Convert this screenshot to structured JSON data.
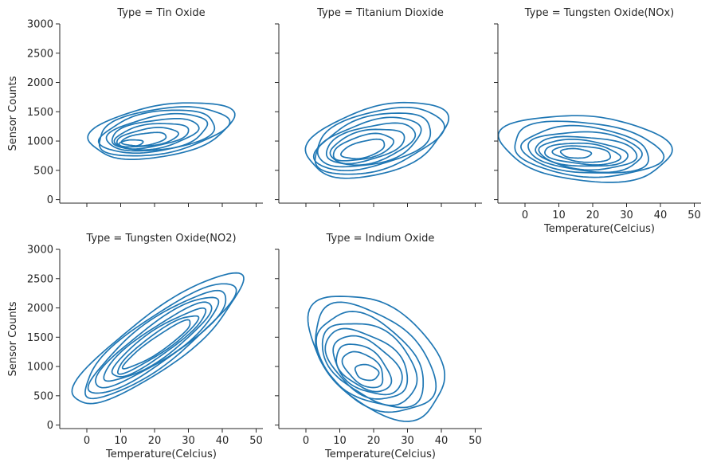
{
  "figure": {
    "line_color": "#1f77b4",
    "facet_column": "Type"
  },
  "chart_data": [
    {
      "type": "kde-contour",
      "title": "Type = Tin Oxide",
      "xlabel": "",
      "ylabel": "Sensor Counts",
      "xlim": [
        -8,
        52
      ],
      "ylim": [
        -60,
        3000
      ],
      "xticks": [
        0,
        10,
        20,
        30,
        40,
        50
      ],
      "yticks": [
        0,
        500,
        1000,
        1500,
        2000,
        2500,
        3000
      ],
      "show_xtick_labels": false,
      "show_ytick_labels": true,
      "grid": false,
      "contours": [
        {
          "cx": 22,
          "cy": 1180,
          "rx": 21,
          "ry": 450,
          "tilt": 0.32
        },
        {
          "cx": 22,
          "cy": 1170,
          "rx": 19,
          "ry": 390,
          "tilt": 0.32
        },
        {
          "cx": 21,
          "cy": 1160,
          "rx": 17,
          "ry": 340,
          "tilt": 0.3
        },
        {
          "cx": 21,
          "cy": 1140,
          "rx": 15,
          "ry": 290,
          "tilt": 0.3
        },
        {
          "cx": 20,
          "cy": 1120,
          "rx": 13,
          "ry": 240,
          "tilt": 0.28
        },
        {
          "cx": 19,
          "cy": 1090,
          "rx": 11,
          "ry": 195,
          "tilt": 0.28
        },
        {
          "cx": 18,
          "cy": 1060,
          "rx": 9,
          "ry": 150,
          "tilt": 0.26
        },
        {
          "cx": 17,
          "cy": 1030,
          "rx": 6.5,
          "ry": 105,
          "tilt": 0.25
        },
        {
          "cx": 13,
          "cy": 960,
          "rx": 3.5,
          "ry": 60,
          "tilt": 0.2
        }
      ]
    },
    {
      "type": "kde-contour",
      "title": "Type = Titanium Dioxide",
      "xlabel": "",
      "ylabel": "",
      "xlim": [
        -8,
        52
      ],
      "ylim": [
        -60,
        3000
      ],
      "xticks": [
        0,
        10,
        20,
        30,
        40,
        50
      ],
      "yticks": [
        0,
        500,
        1000,
        1500,
        2000,
        2500,
        3000
      ],
      "show_xtick_labels": false,
      "show_ytick_labels": false,
      "grid": false,
      "contours": [
        {
          "cx": 21,
          "cy": 1020,
          "rx": 21,
          "ry": 580,
          "tilt": 0.45
        },
        {
          "cx": 21,
          "cy": 1010,
          "rx": 19,
          "ry": 510,
          "tilt": 0.45
        },
        {
          "cx": 20,
          "cy": 990,
          "rx": 17,
          "ry": 440,
          "tilt": 0.45
        },
        {
          "cx": 19,
          "cy": 970,
          "rx": 15,
          "ry": 380,
          "tilt": 0.45
        },
        {
          "cx": 19,
          "cy": 950,
          "rx": 13,
          "ry": 320,
          "tilt": 0.45
        },
        {
          "cx": 18,
          "cy": 920,
          "rx": 11,
          "ry": 260,
          "tilt": 0.45
        },
        {
          "cx": 17,
          "cy": 890,
          "rx": 9,
          "ry": 200,
          "tilt": 0.45
        },
        {
          "cx": 17,
          "cy": 860,
          "rx": 6.5,
          "ry": 140,
          "tilt": 0.45
        }
      ]
    },
    {
      "type": "kde-contour",
      "title": "Type = Tungsten Oxide(NOx)",
      "xlabel": "Temperature(Celcius)",
      "ylabel": "",
      "xlim": [
        -8,
        52
      ],
      "ylim": [
        -60,
        3000
      ],
      "xticks": [
        0,
        10,
        20,
        30,
        40,
        50
      ],
      "yticks": [
        0,
        500,
        1000,
        1500,
        2000,
        2500,
        3000
      ],
      "show_xtick_labels": true,
      "show_ytick_labels": false,
      "grid": false,
      "contours": [
        {
          "cx": 18,
          "cy": 880,
          "rx": 25,
          "ry": 560,
          "tilt": -0.15
        },
        {
          "cx": 18,
          "cy": 860,
          "rx": 22,
          "ry": 460,
          "tilt": -0.15
        },
        {
          "cx": 18,
          "cy": 840,
          "rx": 19,
          "ry": 390,
          "tilt": -0.15
        },
        {
          "cx": 18,
          "cy": 820,
          "rx": 17,
          "ry": 330,
          "tilt": -0.15
        },
        {
          "cx": 18,
          "cy": 800,
          "rx": 15,
          "ry": 275,
          "tilt": -0.15
        },
        {
          "cx": 17,
          "cy": 790,
          "rx": 13,
          "ry": 225,
          "tilt": -0.15
        },
        {
          "cx": 17,
          "cy": 780,
          "rx": 11,
          "ry": 180,
          "tilt": -0.15
        },
        {
          "cx": 17,
          "cy": 780,
          "rx": 8.5,
          "ry": 135,
          "tilt": -0.15
        },
        {
          "cx": 15,
          "cy": 790,
          "rx": 4.5,
          "ry": 80,
          "tilt": -0.1
        }
      ]
    },
    {
      "type": "kde-contour",
      "title": "Type = Tungsten Oxide(NO2)",
      "xlabel": "Temperature(Celcius)",
      "ylabel": "Sensor Counts",
      "xlim": [
        -8,
        52
      ],
      "ylim": [
        -60,
        3000
      ],
      "xticks": [
        0,
        10,
        20,
        30,
        40,
        50
      ],
      "yticks": [
        0,
        500,
        1000,
        1500,
        2000,
        2500,
        3000
      ],
      "show_xtick_labels": true,
      "show_ytick_labels": true,
      "grid": false,
      "contours": [
        {
          "cx": 21,
          "cy": 1450,
          "rx": 25,
          "ry": 560,
          "tilt": 1.35
        },
        {
          "cx": 21,
          "cy": 1440,
          "rx": 22,
          "ry": 490,
          "tilt": 1.35
        },
        {
          "cx": 21,
          "cy": 1430,
          "rx": 20,
          "ry": 430,
          "tilt": 1.35
        },
        {
          "cx": 21,
          "cy": 1420,
          "rx": 18,
          "ry": 370,
          "tilt": 1.35
        },
        {
          "cx": 21,
          "cy": 1410,
          "rx": 16,
          "ry": 310,
          "tilt": 1.35
        },
        {
          "cx": 21,
          "cy": 1400,
          "rx": 14,
          "ry": 255,
          "tilt": 1.35
        },
        {
          "cx": 21,
          "cy": 1390,
          "rx": 12,
          "ry": 200,
          "tilt": 1.35
        },
        {
          "cx": 21,
          "cy": 1380,
          "rx": 10,
          "ry": 150,
          "tilt": 1.35
        }
      ]
    },
    {
      "type": "kde-contour",
      "title": "Type = Indium Oxide",
      "xlabel": "Temperature(Celcius)",
      "ylabel": "",
      "xlim": [
        -8,
        52
      ],
      "ylim": [
        -60,
        3000
      ],
      "xticks": [
        0,
        10,
        20,
        30,
        40,
        50
      ],
      "yticks": [
        0,
        500,
        1000,
        1500,
        2000,
        2500,
        3000
      ],
      "show_xtick_labels": true,
      "show_ytick_labels": false,
      "grid": false,
      "contours": [
        {
          "cx": 21,
          "cy": 1180,
          "rx": 20,
          "ry": 950,
          "tilt": -0.8
        },
        {
          "cx": 20,
          "cy": 1130,
          "rx": 18,
          "ry": 820,
          "tilt": -0.8
        },
        {
          "cx": 19,
          "cy": 1100,
          "rx": 16,
          "ry": 720,
          "tilt": -0.8
        },
        {
          "cx": 19,
          "cy": 1070,
          "rx": 14,
          "ry": 630,
          "tilt": -0.8
        },
        {
          "cx": 18,
          "cy": 1040,
          "rx": 12,
          "ry": 540,
          "tilt": -0.8
        },
        {
          "cx": 18,
          "cy": 1010,
          "rx": 10,
          "ry": 450,
          "tilt": -0.8
        },
        {
          "cx": 17,
          "cy": 980,
          "rx": 8,
          "ry": 360,
          "tilt": -0.8
        },
        {
          "cx": 17,
          "cy": 950,
          "rx": 6,
          "ry": 270,
          "tilt": -0.8
        },
        {
          "cx": 18,
          "cy": 900,
          "rx": 3.5,
          "ry": 130,
          "tilt": -0.3
        }
      ]
    }
  ]
}
